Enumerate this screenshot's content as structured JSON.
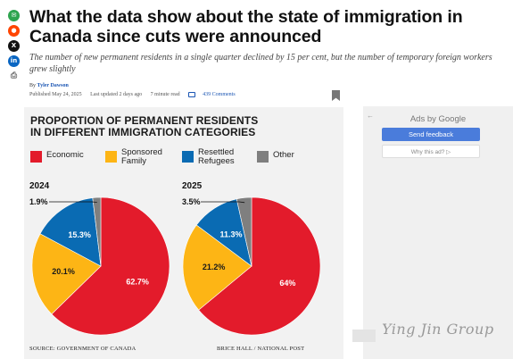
{
  "share": {
    "icons": [
      "email-icon",
      "reddit-icon",
      "x-icon",
      "linkedin-icon",
      "print-icon"
    ]
  },
  "article": {
    "headline": "What the data show about the state of immigration in Canada since cuts were announced",
    "deck": "The number of new permanent residents in a single quarter declined by 15 per cent, but the number of temporary foreign workers grew slightly",
    "byline_prefix": "By",
    "author": "Tyler Dawson",
    "published": "Published May 24, 2025",
    "updated": "Last updated 2 days ago",
    "read_time": "7 minute read",
    "comments": "439 Comments"
  },
  "infographic": {
    "title_line1": "PROPORTION OF PERMANENT RESIDENTS",
    "title_line2": "IN DIFFERENT IMMIGRATION CATEGORIES",
    "legend": [
      {
        "label_line1": "Economic",
        "label_line2": "",
        "color": "#e31b2b"
      },
      {
        "label_line1": "Sponsored",
        "label_line2": "Family",
        "color": "#fdb515"
      },
      {
        "label_line1": "Resettled",
        "label_line2": "Refugees",
        "color": "#0a6bb3"
      },
      {
        "label_line1": "Other",
        "label_line2": "",
        "color": "#7f7f7f"
      }
    ],
    "source": "SOURCE: GOVERNMENT OF CANADA",
    "credit": "BRICE HALL / NATIONAL POST"
  },
  "chart_data": [
    {
      "type": "pie",
      "title": "2024",
      "categories": [
        "Economic",
        "Sponsored Family",
        "Resettled Refugees",
        "Other"
      ],
      "values": [
        62.7,
        20.1,
        15.3,
        1.9
      ],
      "labels": [
        "62.7%",
        "20.1%",
        "15.3%",
        "1.9%"
      ],
      "colors": [
        "#e31b2b",
        "#fdb515",
        "#0a6bb3",
        "#7f7f7f"
      ]
    },
    {
      "type": "pie",
      "title": "2025",
      "categories": [
        "Economic",
        "Sponsored Family",
        "Resettled Refugees",
        "Other"
      ],
      "values": [
        64,
        21.2,
        11.3,
        3.5
      ],
      "labels": [
        "64%",
        "21.2%",
        "11.3%",
        "3.5%"
      ],
      "colors": [
        "#e31b2b",
        "#fdb515",
        "#0a6bb3",
        "#7f7f7f"
      ]
    }
  ],
  "ad": {
    "back_arrow": "←",
    "label": "Ads by Google",
    "feedback_button": "Send feedback",
    "why_link": "Why this ad? ▷"
  },
  "watermark": {
    "text": "Ying Jin Group"
  }
}
